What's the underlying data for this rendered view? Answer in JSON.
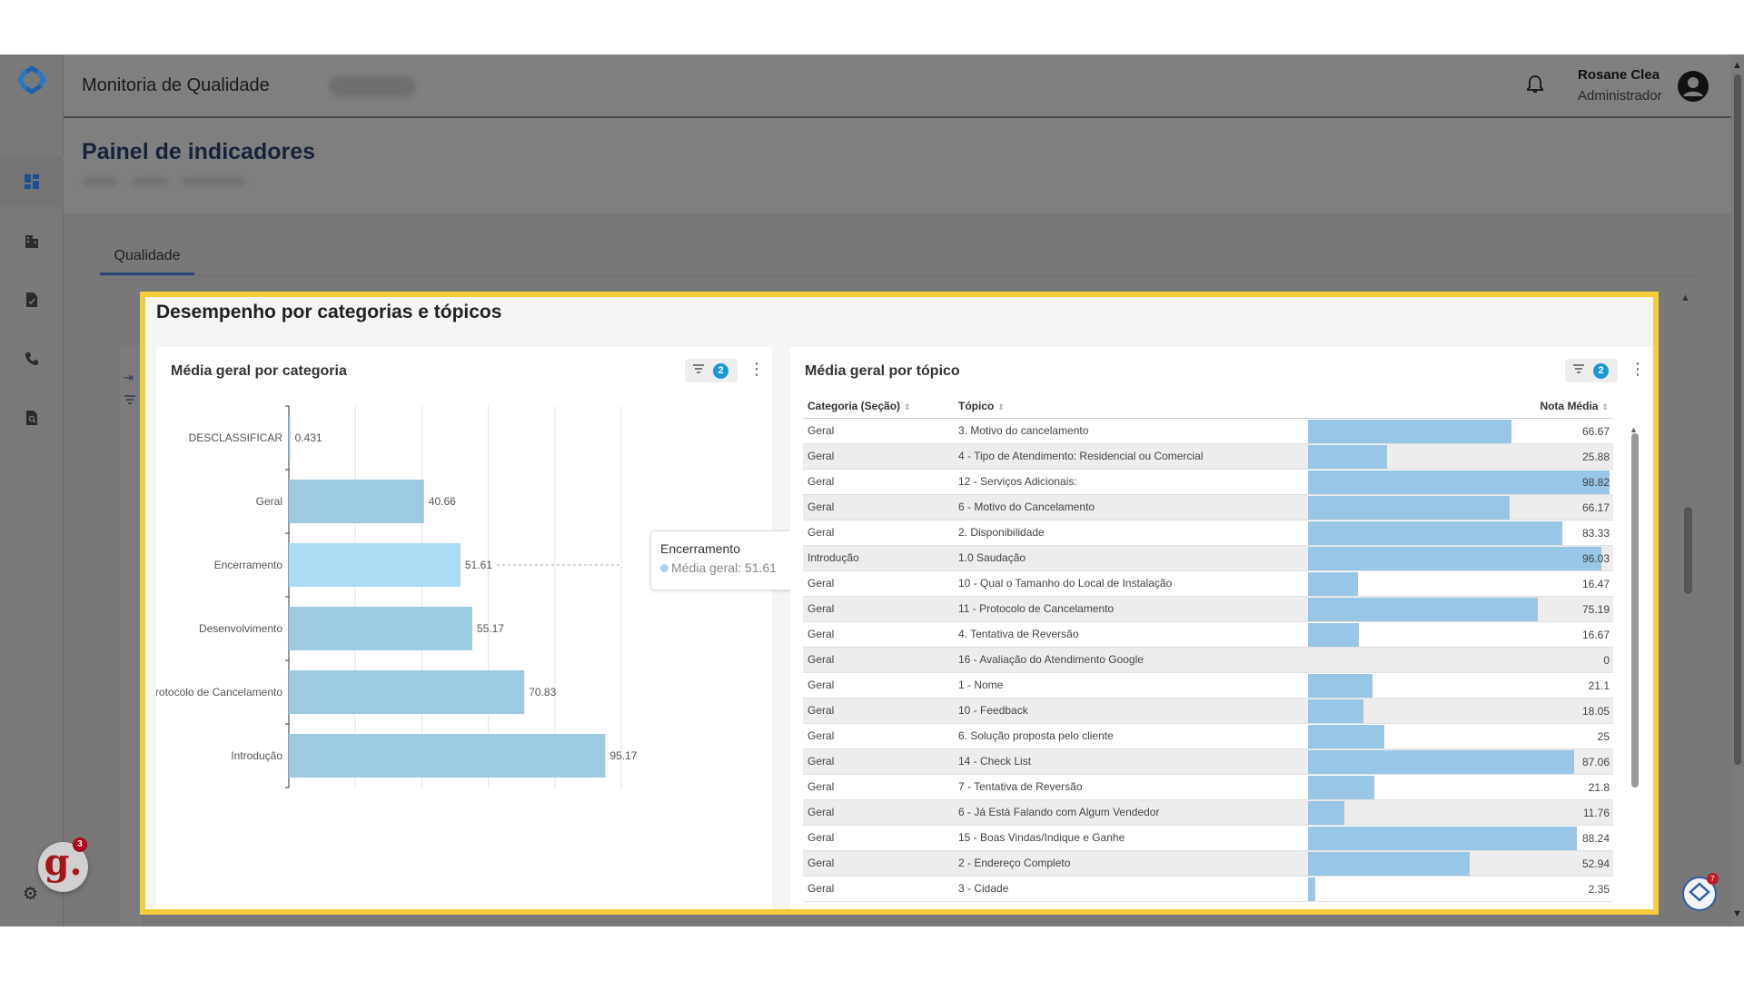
{
  "app": {
    "title": "Monitoria de Qualidade"
  },
  "user": {
    "name": "Rosane Clea",
    "role": "Administrador"
  },
  "page": {
    "title": "Painel de indicadores"
  },
  "tabs": [
    {
      "label": "Qualidade"
    }
  ],
  "section": {
    "title": "Desempenho por categorias e tópicos"
  },
  "panel_category": {
    "title": "Média geral por categoria",
    "filter_count": "2"
  },
  "panel_topic": {
    "title": "Média geral por tópico",
    "filter_count": "2"
  },
  "tooltip": {
    "category": "Encerramento",
    "label": "Média geral: 51.61"
  },
  "widget": {
    "logo_letter": "g.",
    "logo_badge": "3",
    "help_badge": "7"
  },
  "chart_data": {
    "type": "bar",
    "orientation": "horizontal",
    "title": "Média geral por categoria",
    "categories": [
      "DESCLASSIFICAR",
      "Geral",
      "Encerramento",
      "Desenvolvimento",
      "Protocolo de Cancelamento",
      "Introdução"
    ],
    "values": [
      0.431,
      40.66,
      51.61,
      55.17,
      70.83,
      95.17
    ],
    "value_labels": [
      "0.431",
      "40.66",
      "51.61",
      "55.17",
      "70.83",
      "95.17"
    ],
    "highlighted": "Encerramento",
    "xlim": [
      0,
      100
    ],
    "gridlines": [
      20,
      40,
      60,
      80,
      100
    ],
    "colors": {
      "bar": "#9ecae1",
      "highlight": "#aadcf5"
    }
  },
  "topic_table": {
    "columns": [
      "Categoria (Seção)",
      "Tópico",
      "Nota Média"
    ],
    "rows": [
      {
        "category": "Geral",
        "topic": "3. Motivo do cancelamento",
        "score": 66.67,
        "score_label": "66.67"
      },
      {
        "category": "Geral",
        "topic": "4 - Tipo de Atendimento: Residencial ou Comercial",
        "score": 25.88,
        "score_label": "25.88"
      },
      {
        "category": "Geral",
        "topic": "12 - Serviços Adicionais:",
        "score": 98.82,
        "score_label": "98.82"
      },
      {
        "category": "Geral",
        "topic": "6 - Motivo do Cancelamento",
        "score": 66.17,
        "score_label": "66.17"
      },
      {
        "category": "Geral",
        "topic": "2. Disponibilidade",
        "score": 83.33,
        "score_label": "83.33"
      },
      {
        "category": "Introdução",
        "topic": "1.0 Saudação",
        "score": 96.03,
        "score_label": "96.03"
      },
      {
        "category": "Geral",
        "topic": "10 - Qual o Tamanho do Local de Instalação",
        "score": 16.47,
        "score_label": "16.47"
      },
      {
        "category": "Geral",
        "topic": "11 - Protocolo de Cancelamento",
        "score": 75.19,
        "score_label": "75.19"
      },
      {
        "category": "Geral",
        "topic": "4. Tentativa de Reversão",
        "score": 16.67,
        "score_label": "16.67"
      },
      {
        "category": "Geral",
        "topic": "16 - Avaliação do Atendimento Google",
        "score": 0,
        "score_label": "0"
      },
      {
        "category": "Geral",
        "topic": "1 - Nome",
        "score": 21.1,
        "score_label": "21.1"
      },
      {
        "category": "Geral",
        "topic": "10 - Feedback",
        "score": 18.05,
        "score_label": "18.05"
      },
      {
        "category": "Geral",
        "topic": "6. Solução proposta pelo cliente",
        "score": 25,
        "score_label": "25"
      },
      {
        "category": "Geral",
        "topic": "14 - Check List",
        "score": 87.06,
        "score_label": "87.06"
      },
      {
        "category": "Geral",
        "topic": "7 - Tentativa de Reversão",
        "score": 21.8,
        "score_label": "21.8"
      },
      {
        "category": "Geral",
        "topic": "6 - Já Está Falando com Algum Vendedor",
        "score": 11.76,
        "score_label": "11.76"
      },
      {
        "category": "Geral",
        "topic": "15 - Boas Vindas/Indique e Ganhe",
        "score": 88.24,
        "score_label": "88.24"
      },
      {
        "category": "Geral",
        "topic": "2 - Endereço Completo",
        "score": 52.94,
        "score_label": "52.94"
      },
      {
        "category": "Geral",
        "topic": "3 - Cidade",
        "score": 2.35,
        "score_label": "2.35"
      }
    ]
  }
}
